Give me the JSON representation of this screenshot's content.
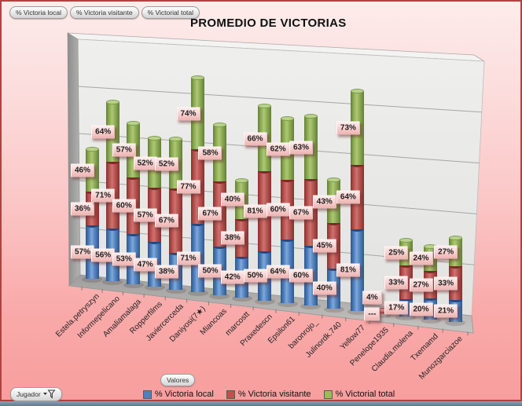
{
  "title": "PROMEDIO DE VICTORIAS",
  "filters": {
    "buttons": [
      "% Victoria local",
      "% Victoria visitante",
      "% Victorial total"
    ]
  },
  "axis_field_button": "Jugador",
  "legend": {
    "field_button": "Valores",
    "items": [
      {
        "label": "% Victoria local",
        "color": "#4f81bd"
      },
      {
        "label": "% Victoria visitante",
        "color": "#c0504d"
      },
      {
        "label": "% Victorial total",
        "color": "#9bbb59"
      }
    ]
  },
  "chart_data": {
    "type": "bar",
    "subtype": "3d-stacked-cylinder",
    "title": "PROMEDIO DE VICTORIAS",
    "grid": true,
    "legend_position": "bottom",
    "value_axis": {
      "min": 0,
      "max": 250,
      "gridline_step": 50,
      "labels_visible": false
    },
    "categories": [
      "Estela.petryszyn",
      "Informepelicano",
      "Amaliamalaga",
      "Ropperfilms",
      "Javiercerceda",
      "Daniyosi(7★)",
      "Miancoas",
      "marcostt",
      "Praxedescn",
      "Epsilon61",
      "baronrojo_",
      "Julinordk.740",
      "Yellow77",
      "Penelope1935",
      "Claudia.molena",
      "Txemamd",
      "Munozgarciazoe"
    ],
    "series": [
      {
        "name": "% Victoria local",
        "color": "#4f81bd",
        "values": [
          57,
          56,
          53,
          47,
          38,
          71,
          50,
          42,
          50,
          64,
          60,
          40,
          81,
          0,
          17,
          20,
          21
        ],
        "labels": [
          "57%",
          "56%",
          "53%",
          "47%",
          "38%",
          "71%",
          "50%",
          "42%",
          "50%",
          "64%",
          "60%",
          "40%",
          "81%",
          "---",
          "17%",
          "20%",
          "21%"
        ]
      },
      {
        "name": "% Victoria visitante",
        "color": "#c0504d",
        "values": [
          36,
          71,
          60,
          57,
          67,
          77,
          67,
          38,
          81,
          60,
          67,
          45,
          64,
          4,
          33,
          27,
          33
        ],
        "labels": [
          "36%",
          "71%",
          "60%",
          "57%",
          "67%",
          "77%",
          "67%",
          "38%",
          "81%",
          "60%",
          "67%",
          "45%",
          "64%",
          "4%",
          "33%",
          "27%",
          "33%"
        ]
      },
      {
        "name": "% Victorial total",
        "color": "#9bbb59",
        "values": [
          46,
          64,
          57,
          52,
          52,
          74,
          58,
          40,
          66,
          62,
          63,
          43,
          73,
          0,
          25,
          24,
          27
        ],
        "labels": [
          "46%",
          "64%",
          "57%",
          "52%",
          "52%",
          "74%",
          "58%",
          "40%",
          "66%",
          "62%",
          "63%",
          "43%",
          "73%",
          null,
          "25%",
          "24%",
          "27%"
        ]
      }
    ]
  }
}
